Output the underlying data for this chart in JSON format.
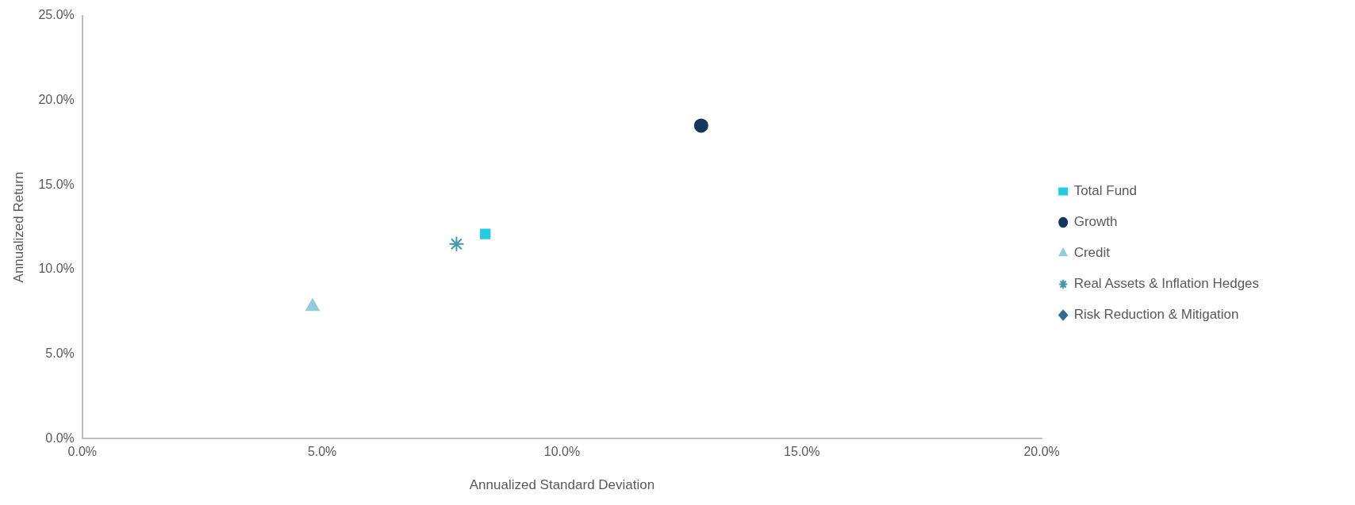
{
  "chart_data": {
    "type": "scatter",
    "xlabel": "Annualized Standard Deviation",
    "ylabel": "Annualized Return",
    "xlim": [
      0,
      20
    ],
    "xticks": [
      {
        "value": 0,
        "label": "0.0%"
      },
      {
        "value": 5,
        "label": "5.0%"
      },
      {
        "value": 10,
        "label": "10.0%"
      },
      {
        "value": 15,
        "label": "15.0%"
      },
      {
        "value": 20,
        "label": "20.0%"
      }
    ],
    "ylim": [
      0,
      25
    ],
    "yticks": [
      {
        "value": 0,
        "label": "0.0%"
      },
      {
        "value": 5,
        "label": "5.0%"
      },
      {
        "value": 10,
        "label": "10.0%"
      },
      {
        "value": 15,
        "label": "15.0%"
      },
      {
        "value": 20,
        "label": "20.0%"
      },
      {
        "value": 25,
        "label": "25.0%"
      }
    ],
    "grid": false,
    "legend": "right",
    "series": [
      {
        "name": "Total Fund",
        "color": "#22cce2",
        "marker": "square",
        "x": [
          8.4
        ],
        "values": [
          12.1
        ]
      },
      {
        "name": "Growth",
        "color": "#17365e",
        "marker": "circle",
        "x": [
          12.9
        ],
        "values": [
          18.5
        ]
      },
      {
        "name": "Credit",
        "color": "#92cddc",
        "marker": "triangle",
        "x": [
          4.8
        ],
        "values": [
          7.8
        ]
      },
      {
        "name": "Real Assets & Inflation Hedges",
        "color": "#3d96ab",
        "marker": "cross",
        "x": [
          7.8
        ],
        "values": [
          11.5
        ]
      },
      {
        "name": "Risk Reduction & Mitigation",
        "color": "#2e6b99",
        "marker": "diamond",
        "x": [
          null
        ],
        "values": [
          null
        ]
      }
    ]
  }
}
